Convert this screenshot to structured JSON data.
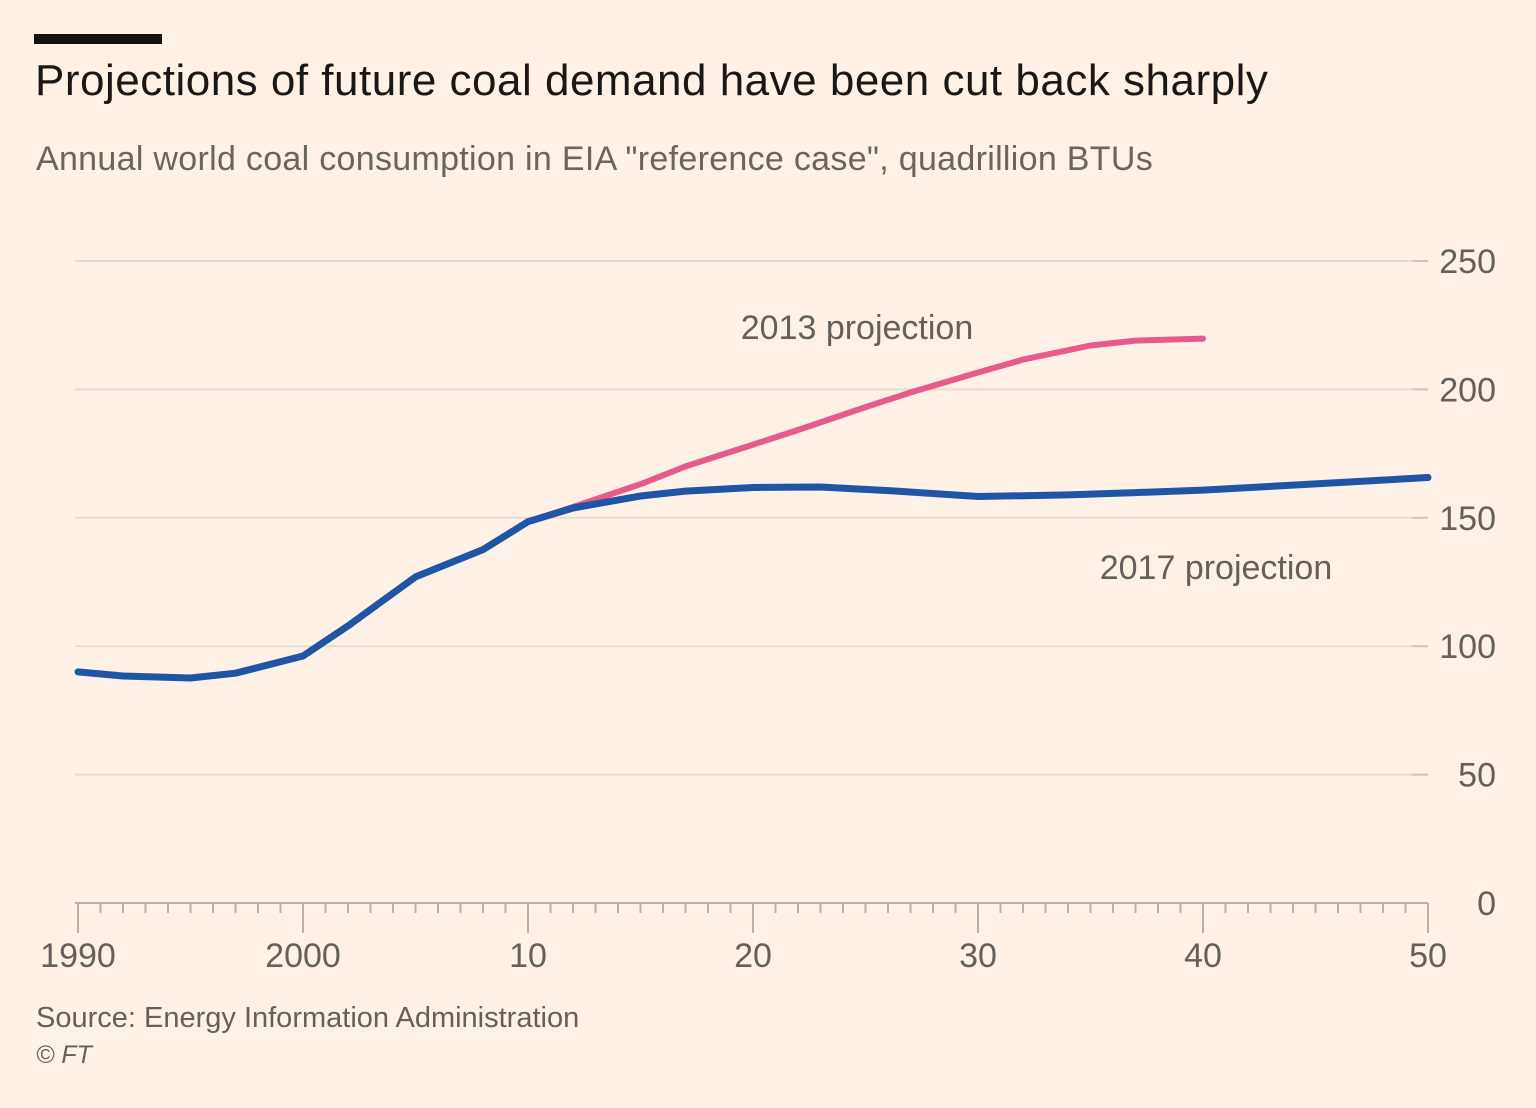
{
  "page": {
    "background": "#fff1e5"
  },
  "header": {
    "accent_bar_color": "#141210",
    "title": "Projections of future coal demand have been cut back sharply",
    "subtitle": "Annual world coal consumption in EIA \"reference case\", quadrillion BTUs"
  },
  "footer": {
    "source": "Source: Energy Information Administration",
    "copyright": "© FT"
  },
  "colors": {
    "background": "#fff1e5",
    "text_gray": "#66605c",
    "title_black": "#1a1817",
    "gridline": "#e8dcd0",
    "axis": "#b9b0a6",
    "line_2013": "#e85a8c",
    "line_2017": "#2055a5"
  },
  "chart_data": {
    "type": "line",
    "title": "Projections of future coal demand have been cut back sharply",
    "subtitle": "Annual world coal consumption in EIA \"reference case\", quadrillion BTUs",
    "xlabel": "",
    "ylabel": "quadrillion BTUs",
    "xlim": [
      1990,
      2050
    ],
    "ylim": [
      0,
      250
    ],
    "grid": "horizontal",
    "legend": "inline-labels",
    "x_ticks": [
      {
        "value": 1990,
        "label": "1990"
      },
      {
        "value": 2000,
        "label": "2000"
      },
      {
        "value": 2010,
        "label": "10"
      },
      {
        "value": 2020,
        "label": "20"
      },
      {
        "value": 2030,
        "label": "30"
      },
      {
        "value": 2040,
        "label": "40"
      },
      {
        "value": 2050,
        "label": "50"
      }
    ],
    "y_ticks": [
      {
        "value": 0,
        "label": "0"
      },
      {
        "value": 50,
        "label": "50"
      },
      {
        "value": 100,
        "label": "100"
      },
      {
        "value": 150,
        "label": "150"
      },
      {
        "value": 200,
        "label": "200"
      },
      {
        "value": 250,
        "label": "250"
      }
    ],
    "series": [
      {
        "name": "2013 projection",
        "color": "#e85a8c",
        "stroke_width": 6,
        "points": [
          [
            2010,
            148.5
          ],
          [
            2012,
            154.2
          ],
          [
            2015,
            163.1
          ],
          [
            2017,
            170.0
          ],
          [
            2020,
            178.5
          ],
          [
            2022,
            184.2
          ],
          [
            2025,
            193.1
          ],
          [
            2027,
            198.8
          ],
          [
            2030,
            206.6
          ],
          [
            2032,
            211.6
          ],
          [
            2035,
            217.1
          ],
          [
            2037,
            219.0
          ],
          [
            2040,
            219.8
          ]
        ]
      },
      {
        "name": "2017 projection",
        "color": "#2055a5",
        "stroke_width": 7,
        "points": [
          [
            1990,
            90.0
          ],
          [
            1992,
            88.4
          ],
          [
            1995,
            87.6
          ],
          [
            1997,
            89.5
          ],
          [
            2000,
            96.2
          ],
          [
            2002,
            107.9
          ],
          [
            2005,
            127.0
          ],
          [
            2008,
            137.6
          ],
          [
            2010,
            148.5
          ],
          [
            2012,
            153.8
          ],
          [
            2015,
            158.5
          ],
          [
            2017,
            160.4
          ],
          [
            2020,
            161.8
          ],
          [
            2023,
            162.0
          ],
          [
            2026,
            160.6
          ],
          [
            2030,
            158.3
          ],
          [
            2034,
            158.9
          ],
          [
            2037,
            159.8
          ],
          [
            2040,
            160.8
          ],
          [
            2045,
            163.2
          ],
          [
            2050,
            165.7
          ]
        ]
      }
    ]
  }
}
